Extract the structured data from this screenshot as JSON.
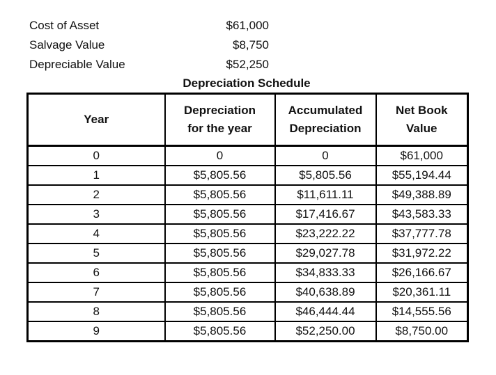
{
  "summary": {
    "rows": [
      {
        "label": "Cost of Asset",
        "value": "$61,000"
      },
      {
        "label": "Salvage Value",
        "value": "$8,750"
      },
      {
        "label": "Depreciable Value",
        "value": "$52,250"
      }
    ]
  },
  "table": {
    "title": "Depreciation Schedule",
    "columns": [
      "Year",
      "Depreciation\nfor the year",
      "Accumulated\nDepreciation",
      "Net Book\nValue"
    ],
    "rows": [
      [
        "0",
        "0",
        "0",
        "$61,000"
      ],
      [
        "1",
        "$5,805.56",
        "$5,805.56",
        "$55,194.44"
      ],
      [
        "2",
        "$5,805.56",
        "$11,611.11",
        "$49,388.89"
      ],
      [
        "3",
        "$5,805.56",
        "$17,416.67",
        "$43,583.33"
      ],
      [
        "4",
        "$5,805.56",
        "$23,222.22",
        "$37,777.78"
      ],
      [
        "5",
        "$5,805.56",
        "$29,027.78",
        "$31,972.22"
      ],
      [
        "6",
        "$5,805.56",
        "$34,833.33",
        "$26,166.67"
      ],
      [
        "7",
        "$5,805.56",
        "$40,638.89",
        "$20,361.11"
      ],
      [
        "8",
        "$5,805.56",
        "$46,444.44",
        "$14,555.56"
      ],
      [
        "9",
        "$5,805.56",
        "$52,250.00",
        "$8,750.00"
      ]
    ]
  }
}
